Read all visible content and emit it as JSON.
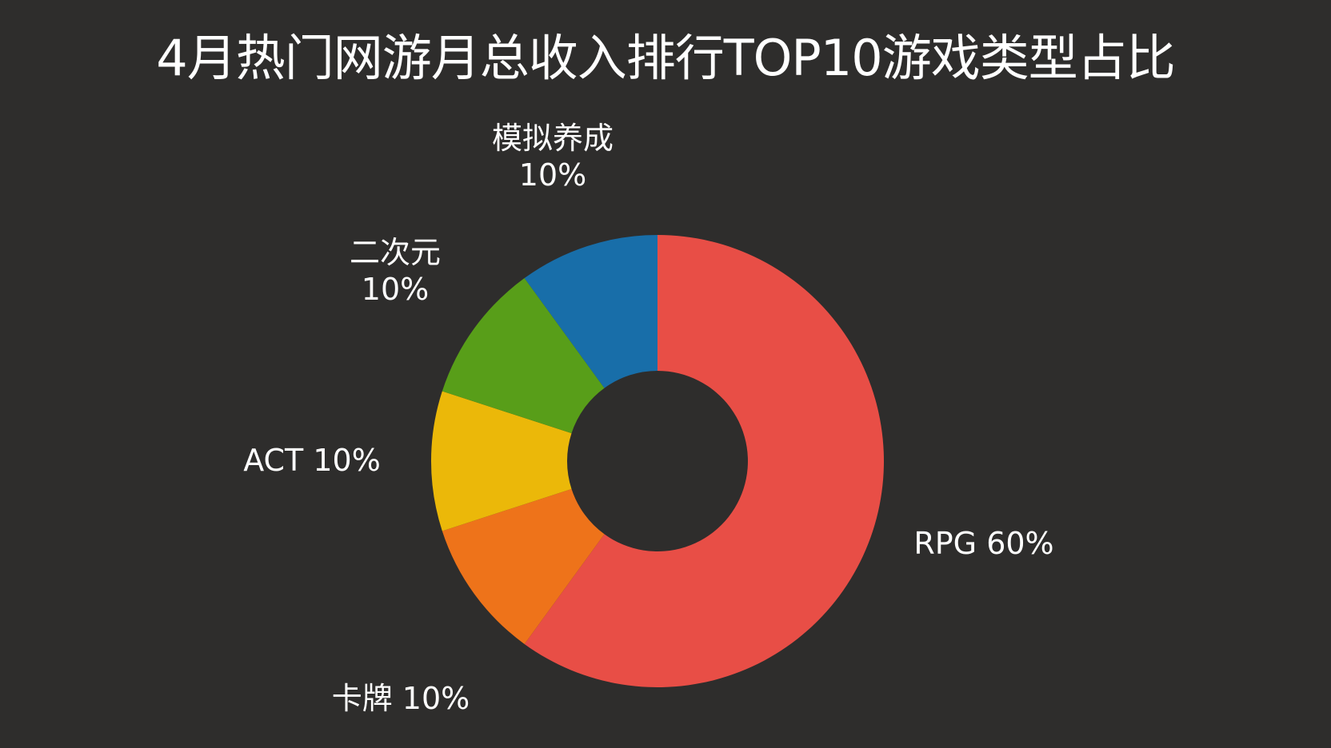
{
  "title": "4月热门网游月总收入排行TOP10游戏类型占比",
  "chart_data": {
    "type": "pie",
    "title": "4月热门网游月总收入排行TOP10游戏类型占比",
    "donut": true,
    "categories": [
      "RPG",
      "卡牌",
      "ACT",
      "二次元",
      "模拟养成"
    ],
    "values": [
      60,
      10,
      10,
      10,
      10
    ],
    "unit": "%",
    "colors": [
      "#e84e46",
      "#ee731a",
      "#ebb809",
      "#589e19",
      "#186ea9"
    ],
    "labels": [
      [
        "RPG 60%"
      ],
      [
        "卡牌 10%"
      ],
      [
        "ACT 10%"
      ],
      [
        "二次元",
        "10%"
      ],
      [
        "模拟养成",
        "10%"
      ]
    ],
    "start_angle": "12 o'clock",
    "direction": "clockwise",
    "legend": "none"
  },
  "background_color": "#2e2d2c"
}
